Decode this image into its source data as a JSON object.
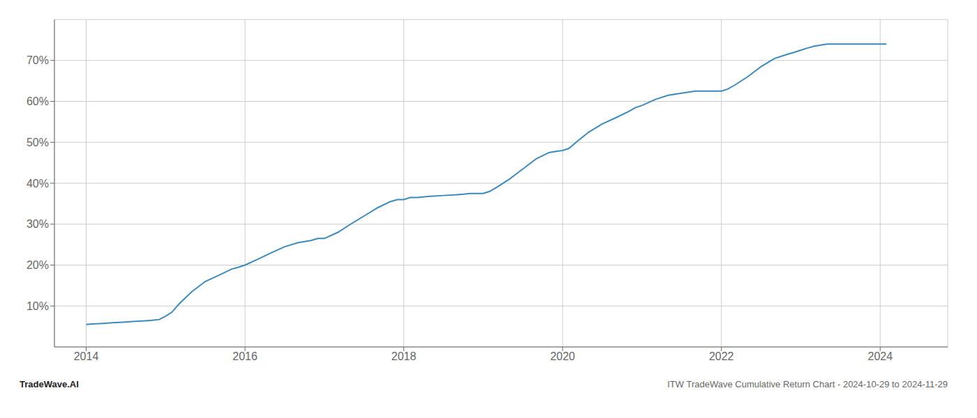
{
  "chart_data": {
    "type": "line",
    "title": "ITW TradeWave Cumulative Return Chart - 2024-10-29 to 2024-11-29",
    "annotations": [
      "TradeWave.AI"
    ],
    "color": "#3a8abf",
    "grid": true,
    "xlim": [
      2013.6,
      2024.85
    ],
    "xticks": [
      2014,
      2016,
      2018,
      2020,
      2022,
      2024
    ],
    "ylim": [
      0,
      80
    ],
    "yticks": [
      {
        "value": 10,
        "label": "10%"
      },
      {
        "value": 20,
        "label": "20%"
      },
      {
        "value": 30,
        "label": "30%"
      },
      {
        "value": 40,
        "label": "40%"
      },
      {
        "value": 50,
        "label": "50%"
      },
      {
        "value": 60,
        "label": "60%"
      },
      {
        "value": 70,
        "label": "70%"
      }
    ],
    "x": [
      2014.0,
      2014.08,
      2014.17,
      2014.25,
      2014.33,
      2014.42,
      2014.5,
      2014.58,
      2014.67,
      2014.75,
      2014.83,
      2014.92,
      2015.0,
      2015.08,
      2015.17,
      2015.33,
      2015.5,
      2015.67,
      2015.83,
      2015.92,
      2016.0,
      2016.17,
      2016.33,
      2016.5,
      2016.67,
      2016.83,
      2016.92,
      2017.0,
      2017.17,
      2017.33,
      2017.5,
      2017.67,
      2017.83,
      2017.92,
      2018.0,
      2018.08,
      2018.17,
      2018.33,
      2018.5,
      2018.67,
      2018.75,
      2018.83,
      2018.92,
      2019.0,
      2019.08,
      2019.17,
      2019.33,
      2019.5,
      2019.67,
      2019.83,
      2019.92,
      2020.0,
      2020.08,
      2020.17,
      2020.33,
      2020.5,
      2020.67,
      2020.83,
      2020.92,
      2021.0,
      2021.17,
      2021.33,
      2021.5,
      2021.67,
      2021.83,
      2021.92,
      2022.0,
      2022.08,
      2022.17,
      2022.33,
      2022.5,
      2022.67,
      2022.83,
      2022.92,
      2023.0,
      2023.08,
      2023.17,
      2023.33,
      2023.5,
      2023.67,
      2023.75,
      2023.83,
      2023.92,
      2024.0,
      2024.08
    ],
    "values": [
      5.5,
      5.6,
      5.7,
      5.8,
      5.9,
      6.0,
      6.1,
      6.2,
      6.3,
      6.4,
      6.5,
      6.7,
      7.5,
      8.5,
      10.5,
      13.5,
      16.0,
      17.5,
      19.0,
      19.5,
      20.0,
      21.5,
      23.0,
      24.5,
      25.5,
      26.0,
      26.5,
      26.5,
      28.0,
      30.0,
      32.0,
      34.0,
      35.5,
      36.0,
      36.0,
      36.5,
      36.5,
      36.8,
      37.0,
      37.2,
      37.3,
      37.5,
      37.5,
      37.5,
      38.0,
      39.0,
      41.0,
      43.5,
      46.0,
      47.5,
      47.8,
      48.0,
      48.5,
      50.0,
      52.5,
      54.5,
      56.0,
      57.5,
      58.5,
      59.0,
      60.5,
      61.5,
      62.0,
      62.5,
      62.5,
      62.5,
      62.5,
      63.0,
      64.0,
      66.0,
      68.5,
      70.5,
      71.5,
      72.0,
      72.5,
      73.0,
      73.5,
      74.0,
      74.0,
      74.0,
      74.0,
      74.0,
      74.0,
      74.0,
      74.0
    ]
  }
}
